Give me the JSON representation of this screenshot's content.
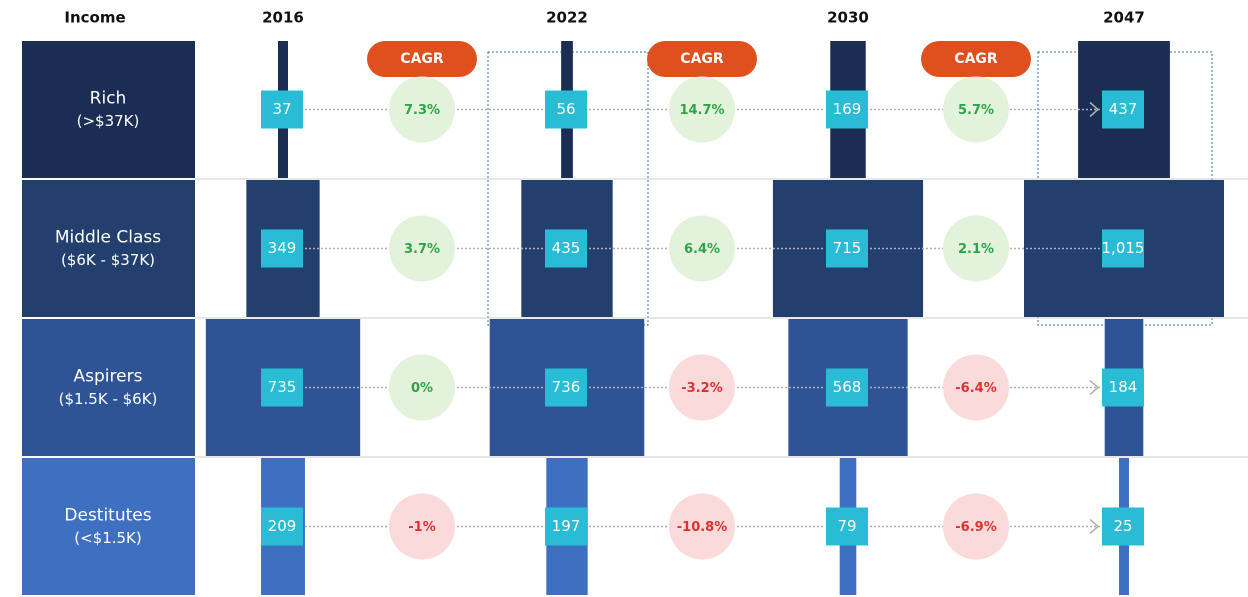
{
  "chart_data": {
    "type": "matrix",
    "header": "Income",
    "years": [
      "2016",
      "2022",
      "2030",
      "2047"
    ],
    "cagr_label": "CAGR",
    "rows": [
      {
        "name": "Rich",
        "range": "(>$37K)",
        "color": "#1b2d55",
        "values": [
          37,
          56,
          169,
          437
        ],
        "cagr": [
          7.3,
          14.7,
          5.7
        ],
        "cagr_labels": [
          "7.3%",
          "14.7%",
          "5.7%"
        ]
      },
      {
        "name": "Middle Class",
        "range": "($6K - $37K)",
        "color": "#233f6e",
        "values": [
          349,
          435,
          715,
          1015
        ],
        "value_labels": [
          "349",
          "435",
          "715",
          "1,015"
        ],
        "cagr": [
          3.7,
          6.4,
          2.1
        ],
        "cagr_labels": [
          "3.7%",
          "6.4%",
          "2.1%"
        ]
      },
      {
        "name": "Aspirers",
        "range": "($1.5K - $6K)",
        "color": "#2e5496",
        "values": [
          735,
          736,
          568,
          184
        ],
        "cagr": [
          0,
          -3.2,
          -6.4
        ],
        "cagr_labels": [
          "0%",
          "-3.2%",
          "-6.4%"
        ]
      },
      {
        "name": "Destitutes",
        "range": "(<$1.5K)",
        "color": "#3f6fc0",
        "values": [
          209,
          197,
          79,
          25
        ],
        "cagr": [
          -1,
          -10.8,
          -6.9
        ],
        "cagr_labels": [
          "-1%",
          "-10.8%",
          "-6.9%"
        ]
      }
    ]
  }
}
